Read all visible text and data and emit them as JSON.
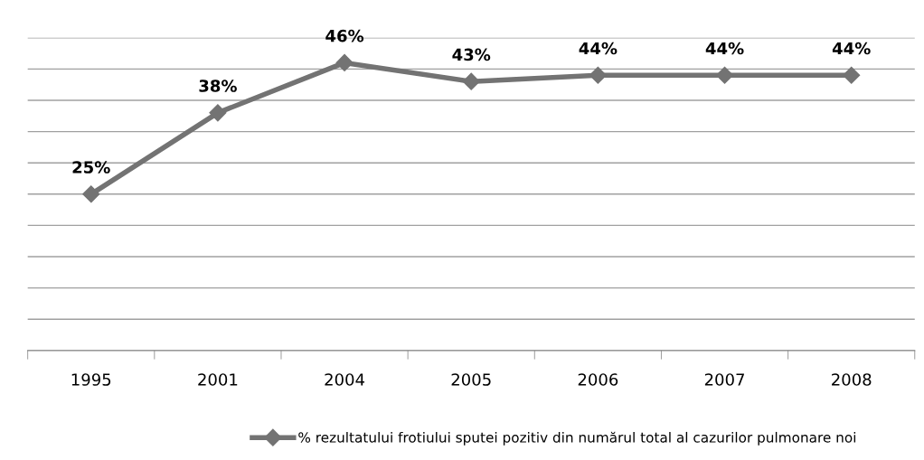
{
  "chart_data": {
    "type": "line",
    "categories": [
      "1995",
      "2001",
      "2004",
      "2005",
      "2006",
      "2007",
      "2008"
    ],
    "series": [
      {
        "name": "% rezultatului frotiului sputei pozitiv din numărul total al cazurilor pulmonare noi",
        "color": "#737373",
        "values": [
          25,
          38,
          46,
          43,
          44,
          44,
          44
        ],
        "value_labels": [
          "25%",
          "38%",
          "46%",
          "43%",
          "44%",
          "44%",
          "44%"
        ]
      }
    ],
    "ylim": [
      0,
      50
    ],
    "yticks": [
      {
        "value": 0,
        "label": null
      },
      {
        "value": 5,
        "label": null
      },
      {
        "value": 10,
        "label": null
      },
      {
        "value": 15,
        "label": null
      },
      {
        "value": 20,
        "label": null
      },
      {
        "value": 25,
        "label": null
      },
      {
        "value": 30,
        "label": null
      },
      {
        "value": 35,
        "label": null
      },
      {
        "value": 40,
        "label": null
      },
      {
        "value": 45,
        "label": null
      },
      {
        "value": 50,
        "label": null
      }
    ],
    "grid": "y",
    "legend": "bottom",
    "marker": "diamond",
    "line_style": "solid",
    "tick_labels": "x"
  }
}
